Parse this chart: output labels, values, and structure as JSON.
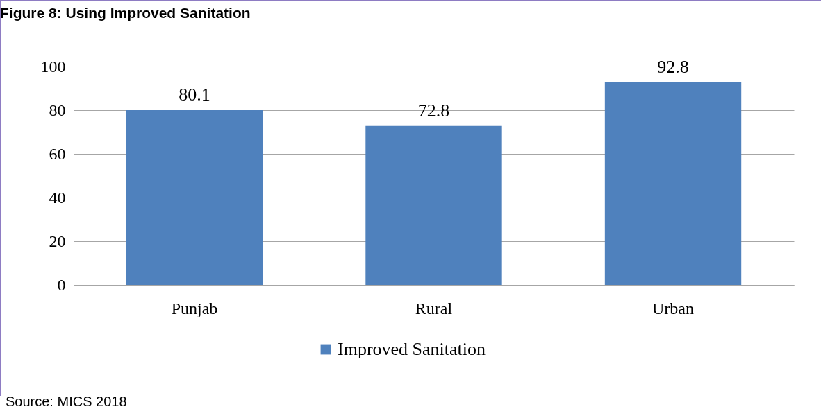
{
  "chart_data": {
    "type": "bar",
    "title": "Figure 8: Using Improved Sanitation",
    "categories": [
      "Punjab",
      "Rural",
      "Urban"
    ],
    "series": [
      {
        "name": "Improved Sanitation",
        "color": "#4f81bd",
        "values": [
          80.1,
          72.8,
          92.8
        ]
      }
    ],
    "ylim": [
      0,
      100
    ],
    "yticks": [
      0,
      20,
      40,
      60,
      80,
      100
    ],
    "grid": "y",
    "legend": "bottom",
    "data_labels": true,
    "annotations": [
      "Source: MICS 2018"
    ]
  }
}
